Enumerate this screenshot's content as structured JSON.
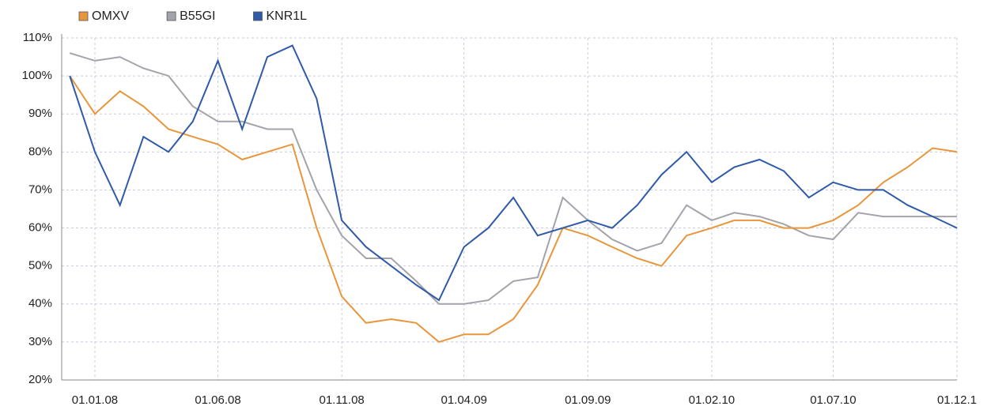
{
  "chart_data": {
    "type": "line",
    "x": [
      "2007-12-01",
      "2008-01-01",
      "2008-02-01",
      "2008-03-01",
      "2008-04-01",
      "2008-05-01",
      "2008-06-01",
      "2008-07-01",
      "2008-08-01",
      "2008-09-01",
      "2008-10-01",
      "2008-11-01",
      "2008-12-01",
      "2009-01-01",
      "2009-02-01",
      "2009-03-01",
      "2009-04-01",
      "2009-05-01",
      "2009-06-01",
      "2009-07-01",
      "2009-08-01",
      "2009-09-01",
      "2009-10-01",
      "2009-11-01",
      "2009-12-01",
      "2010-01-01",
      "2010-02-01",
      "2010-03-01",
      "2010-04-01",
      "2010-05-01",
      "2010-06-01",
      "2010-07-01",
      "2010-08-01",
      "2010-09-01",
      "2010-10-01",
      "2010-11-01",
      "2010-12-01"
    ],
    "series": [
      {
        "name": "OMXV",
        "color": "#e8963c",
        "values": [
          100,
          90,
          96,
          92,
          86,
          84,
          82,
          78,
          80,
          82,
          60,
          42,
          35,
          36,
          35,
          30,
          32,
          32,
          36,
          45,
          60,
          58,
          55,
          52,
          50,
          58,
          60,
          62,
          62,
          60,
          60,
          62,
          66,
          72,
          76,
          81,
          80
        ]
      },
      {
        "name": "B55GI",
        "color": "#a3a3ab",
        "values": [
          106,
          104,
          105,
          102,
          100,
          92,
          88,
          88,
          86,
          86,
          70,
          58,
          52,
          52,
          46,
          40,
          40,
          41,
          46,
          47,
          68,
          62,
          57,
          54,
          56,
          66,
          62,
          64,
          63,
          61,
          58,
          57,
          64,
          63,
          63,
          63,
          63
        ]
      },
      {
        "name": "KNR1L",
        "color": "#2f5aa8",
        "values": [
          100,
          80,
          66,
          84,
          80,
          88,
          104,
          86,
          105,
          108,
          94,
          62,
          55,
          50,
          45,
          41,
          55,
          60,
          68,
          58,
          60,
          62,
          60,
          66,
          74,
          80,
          72,
          76,
          78,
          75,
          68,
          72,
          70,
          70,
          66,
          63,
          60
        ]
      }
    ],
    "xlim": [
      "2007-11-21",
      "2010-12-01"
    ],
    "xticks": [
      {
        "value": "2008-01-01",
        "label": "01.01.08"
      },
      {
        "value": "2008-06-01",
        "label": "01.06.08"
      },
      {
        "value": "2008-11-01",
        "label": "01.11.08"
      },
      {
        "value": "2009-04-01",
        "label": "01.04.09"
      },
      {
        "value": "2009-09-01",
        "label": "01.09.09"
      },
      {
        "value": "2010-02-01",
        "label": "01.02.10"
      },
      {
        "value": "2010-07-01",
        "label": "01.07.10"
      },
      {
        "value": "2010-12-01",
        "label": "01.12.1"
      }
    ],
    "ylim": [
      20,
      110
    ],
    "yticks": [
      {
        "value": 20,
        "label": "20%"
      },
      {
        "value": 30,
        "label": "30%"
      },
      {
        "value": 40,
        "label": "40%"
      },
      {
        "value": 50,
        "label": "50%"
      },
      {
        "value": 60,
        "label": "60%"
      },
      {
        "value": 70,
        "label": "70%"
      },
      {
        "value": 80,
        "label": "80%"
      },
      {
        "value": 90,
        "label": "90%"
      },
      {
        "value": 100,
        "label": "100%"
      },
      {
        "value": 110,
        "label": "110%"
      }
    ],
    "grid": true,
    "legend": "top-left"
  }
}
